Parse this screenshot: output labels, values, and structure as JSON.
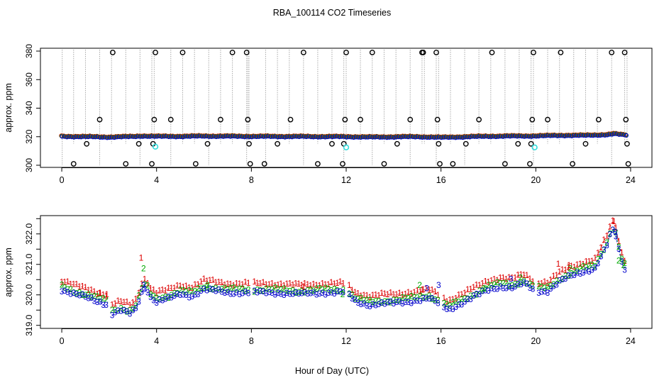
{
  "figure": {
    "title": "RBA_100114  CO2 Timeseries",
    "xlabel": "Hour of Day (UTC)"
  },
  "chart_data": [
    {
      "type": "scatter",
      "panel": "top",
      "ylabel": "approx. ppm",
      "xlim": [
        -0.9,
        24.9
      ],
      "ylim": [
        298.5,
        382
      ],
      "x_ticks": [
        0,
        4,
        8,
        12,
        16,
        20,
        24
      ],
      "x_tick_labels": [
        "0",
        "4",
        "8",
        "12",
        "16",
        "20",
        "24"
      ],
      "y_ticks": [
        300,
        320,
        340,
        360,
        380
      ],
      "y_tick_labels": [
        "300",
        "320",
        "340",
        "360",
        "380"
      ],
      "baseline_profile": [
        [
          0,
          320.3
        ],
        [
          1,
          320.1
        ],
        [
          2,
          319.8
        ],
        [
          3,
          320.2
        ],
        [
          3.4,
          320.6
        ],
        [
          4,
          320.3
        ],
        [
          5,
          320.3
        ],
        [
          6,
          320.5
        ],
        [
          8,
          320.3
        ],
        [
          10,
          320.2
        ],
        [
          12,
          320.1
        ],
        [
          13,
          319.8
        ],
        [
          15,
          320.1
        ],
        [
          16,
          319.6
        ],
        [
          17,
          320.0
        ],
        [
          18,
          320.4
        ],
        [
          20,
          320.6
        ],
        [
          21,
          321.0
        ],
        [
          22,
          321.0
        ],
        [
          23,
          321.5
        ],
        [
          23.3,
          322.1
        ],
        [
          23.7,
          321.4
        ],
        [
          24,
          321.2
        ]
      ],
      "baseline_sampling_interval_h": 0.1,
      "vertical_line_events": [
        0.02,
        0.5,
        1.0,
        1.6,
        2.1,
        2.7,
        3.3,
        3.8,
        3.9,
        4.6,
        5.1,
        5.6,
        6.2,
        6.7,
        7.2,
        7.8,
        7.85,
        7.9,
        8.6,
        9.1,
        9.6,
        10.2,
        10.8,
        11.4,
        11.9,
        12.0,
        12.6,
        13.1,
        13.6,
        14.1,
        14.7,
        15.2,
        15.3,
        15.8,
        15.9,
        16.4,
        17.0,
        17.6,
        18.1,
        18.7,
        19.3,
        19.8,
        19.9,
        20.5,
        21.0,
        21.6,
        22.1,
        22.6,
        23.2,
        23.75,
        23.85
      ],
      "outlier_points": [
        {
          "x": 0.5,
          "y": 301
        },
        {
          "x": 1.05,
          "y": 315
        },
        {
          "x": 1.6,
          "y": 332
        },
        {
          "x": 2.15,
          "y": 379
        },
        {
          "x": 2.7,
          "y": 301
        },
        {
          "x": 3.25,
          "y": 315
        },
        {
          "x": 3.8,
          "y": 301
        },
        {
          "x": 3.85,
          "y": 315
        },
        {
          "x": 3.9,
          "y": 332
        },
        {
          "x": 3.95,
          "y": 379
        },
        {
          "x": 4.6,
          "y": 332
        },
        {
          "x": 5.1,
          "y": 379
        },
        {
          "x": 5.65,
          "y": 301
        },
        {
          "x": 6.15,
          "y": 315
        },
        {
          "x": 6.7,
          "y": 332
        },
        {
          "x": 7.2,
          "y": 379
        },
        {
          "x": 7.8,
          "y": 379
        },
        {
          "x": 7.85,
          "y": 332
        },
        {
          "x": 7.9,
          "y": 315
        },
        {
          "x": 7.95,
          "y": 301
        },
        {
          "x": 8.55,
          "y": 301
        },
        {
          "x": 9.1,
          "y": 315
        },
        {
          "x": 9.65,
          "y": 332
        },
        {
          "x": 10.2,
          "y": 379
        },
        {
          "x": 10.8,
          "y": 301
        },
        {
          "x": 11.4,
          "y": 315
        },
        {
          "x": 11.85,
          "y": 301
        },
        {
          "x": 11.9,
          "y": 315
        },
        {
          "x": 11.95,
          "y": 332
        },
        {
          "x": 12.0,
          "y": 379
        },
        {
          "x": 12.6,
          "y": 332
        },
        {
          "x": 13.1,
          "y": 379
        },
        {
          "x": 13.6,
          "y": 301
        },
        {
          "x": 14.15,
          "y": 315
        },
        {
          "x": 14.7,
          "y": 332
        },
        {
          "x": 15.2,
          "y": 379
        },
        {
          "x": 15.25,
          "y": 379
        },
        {
          "x": 15.8,
          "y": 379
        },
        {
          "x": 15.85,
          "y": 332
        },
        {
          "x": 15.9,
          "y": 315
        },
        {
          "x": 15.95,
          "y": 301
        },
        {
          "x": 16.5,
          "y": 301
        },
        {
          "x": 17.05,
          "y": 315
        },
        {
          "x": 17.6,
          "y": 332
        },
        {
          "x": 18.15,
          "y": 379
        },
        {
          "x": 18.7,
          "y": 301
        },
        {
          "x": 19.25,
          "y": 315
        },
        {
          "x": 19.75,
          "y": 301
        },
        {
          "x": 19.8,
          "y": 315
        },
        {
          "x": 19.85,
          "y": 332
        },
        {
          "x": 19.9,
          "y": 379
        },
        {
          "x": 20.5,
          "y": 332
        },
        {
          "x": 21.05,
          "y": 379
        },
        {
          "x": 21.55,
          "y": 301
        },
        {
          "x": 22.1,
          "y": 315
        },
        {
          "x": 22.65,
          "y": 332
        },
        {
          "x": 23.2,
          "y": 379
        },
        {
          "x": 23.75,
          "y": 379
        },
        {
          "x": 23.8,
          "y": 332
        },
        {
          "x": 23.85,
          "y": 315
        },
        {
          "x": 23.9,
          "y": 301
        }
      ],
      "cyan_points": [
        {
          "x": 3.95,
          "y": 313
        },
        {
          "x": 12.0,
          "y": 312.5
        },
        {
          "x": 19.95,
          "y": 312.5
        }
      ],
      "series_colors": {
        "1": "#dd0000",
        "2": "#00aa00",
        "3": "#0000cc",
        "outlier": "#000000",
        "cyan": "#33dddd",
        "line": "#aaaaaa"
      }
    },
    {
      "type": "scatter",
      "panel": "bottom",
      "ylabel": "approx. ppm",
      "xlim": [
        -0.9,
        24.9
      ],
      "ylim": [
        318.9,
        322.6
      ],
      "x_ticks": [
        0,
        4,
        8,
        12,
        16,
        20,
        24
      ],
      "x_tick_labels": [
        "0",
        "4",
        "8",
        "12",
        "16",
        "20",
        "24"
      ],
      "y_ticks": [
        319.0,
        320.0,
        321.0,
        322.0
      ],
      "y_minor_ticks": [
        319.5,
        320.5,
        321.5,
        322.5
      ],
      "y_tick_labels": [
        "319.0",
        "320.0",
        "321.0",
        "322.0"
      ],
      "series_markers": [
        "1",
        "2",
        "3"
      ],
      "series_colors": {
        "1": "#dd0000",
        "2": "#00aa00",
        "3": "#0000cc"
      },
      "series_offsets_ppm": {
        "1": 0.3,
        "2": 0.1,
        "3": 0.0
      },
      "data_gaps_h": [
        [
          1.95,
          2.1
        ],
        [
          7.95,
          8.05
        ],
        [
          11.95,
          12.05
        ],
        [
          15.95,
          16.05
        ],
        [
          19.95,
          20.05
        ]
      ],
      "sampling_interval_h": 0.125,
      "profile": [
        [
          0,
          320.15
        ],
        [
          0.5,
          320.0
        ],
        [
          1,
          319.9
        ],
        [
          1.6,
          319.75
        ],
        [
          2.0,
          319.65
        ],
        [
          2.1,
          319.35
        ],
        [
          2.5,
          319.45
        ],
        [
          2.9,
          319.35
        ],
        [
          3.15,
          319.55
        ],
        [
          3.35,
          320.05
        ],
        [
          3.55,
          320.25
        ],
        [
          3.75,
          319.9
        ],
        [
          4.0,
          319.75
        ],
        [
          4.5,
          319.85
        ],
        [
          5,
          320.0
        ],
        [
          5.5,
          319.95
        ],
        [
          6,
          320.15
        ],
        [
          7,
          320.05
        ],
        [
          8,
          320.05
        ],
        [
          9,
          320.05
        ],
        [
          10,
          320.0
        ],
        [
          11,
          320.05
        ],
        [
          12,
          320.05
        ],
        [
          12.4,
          319.75
        ],
        [
          13,
          319.65
        ],
        [
          14,
          319.7
        ],
        [
          15,
          319.8
        ],
        [
          15.5,
          319.85
        ],
        [
          16,
          319.65
        ],
        [
          16.3,
          319.5
        ],
        [
          17,
          319.75
        ],
        [
          18,
          320.15
        ],
        [
          18.5,
          320.25
        ],
        [
          19,
          320.2
        ],
        [
          19.5,
          320.35
        ],
        [
          20,
          320.1
        ],
        [
          20.5,
          320.1
        ],
        [
          21,
          320.4
        ],
        [
          21.5,
          320.6
        ],
        [
          22,
          320.75
        ],
        [
          22.5,
          320.85
        ],
        [
          23.0,
          321.6
        ],
        [
          23.2,
          322.1
        ],
        [
          23.35,
          322.0
        ],
        [
          23.6,
          321.1
        ],
        [
          23.75,
          320.85
        ]
      ],
      "red_spikes": [
        [
          1.6,
          320.05
        ],
        [
          1.9,
          320.0
        ],
        [
          3.35,
          321.2
        ],
        [
          10.2,
          320.25
        ],
        [
          15.2,
          320.15
        ],
        [
          20.95,
          321.0
        ],
        [
          21.4,
          320.95
        ],
        [
          23.3,
          322.4
        ]
      ],
      "green_spikes": [
        [
          3.45,
          320.85
        ],
        [
          6.15,
          320.3
        ],
        [
          11.85,
          320.0
        ],
        [
          15.1,
          320.3
        ],
        [
          17.8,
          320.2
        ],
        [
          19.35,
          320.55
        ],
        [
          21.45,
          320.85
        ],
        [
          23.5,
          321.1
        ],
        [
          23.7,
          320.95
        ]
      ],
      "blue_spikes": [
        [
          3.45,
          320.3
        ],
        [
          15.4,
          320.2
        ],
        [
          15.9,
          320.3
        ],
        [
          18.95,
          320.5
        ],
        [
          23.35,
          322.05
        ]
      ]
    }
  ]
}
